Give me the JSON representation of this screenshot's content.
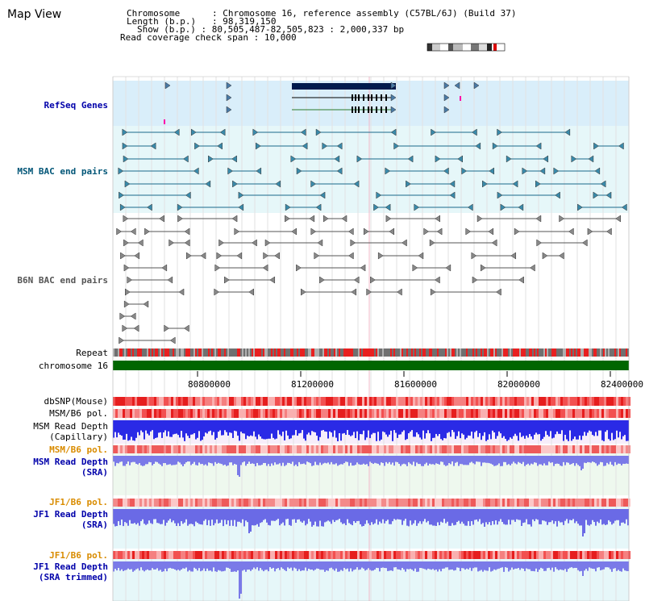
{
  "title": "Map View",
  "info": {
    "chromosome_label": "Chromosome",
    "chromosome_value": "Chromosome 16, reference assembly (C57BL/6J) (Build 37)",
    "length_label": "Length (b.p.)",
    "length_value": "98,319,150",
    "show_label": "Show (b.p.)",
    "show_value": "80,505,487-82,505,823 : 2,000,337 bp",
    "coverage_label": "Read coverage check span",
    "coverage_value": "10,000"
  },
  "tracks": {
    "refseq": "RefSeq Genes",
    "msm_bac": "MSM BAC end pairs",
    "b6n_bac": "B6N BAC end pairs",
    "repeat": "Repeat",
    "chromosome": "chromosome 16",
    "dbsnp": "dbSNP(Mouse)",
    "msm_b6_pol_1": "MSM/B6 pol.",
    "msm_read_depth_cap_1": "MSM Read Depth",
    "msm_read_depth_cap_2": "(Capillary)",
    "msm_b6_pol_2": "MSM/B6 pol.",
    "msm_read_depth_sra_1": "MSM Read Depth",
    "msm_read_depth_sra_2": "(SRA)",
    "jf1_b6_pol_1": "JF1/B6 pol.",
    "jf1_read_depth_sra_1": "JF1 Read Depth",
    "jf1_read_depth_sra_2": "(SRA)",
    "jf1_b6_pol_2": "JF1/B6 pol.",
    "jf1_read_depth_trim_1": "JF1 Read Depth",
    "jf1_read_depth_trim_2": "(SRA trimmed)"
  },
  "axis_ticks": [
    "80800000",
    "81200000",
    "81600000",
    "82000000",
    "82400000"
  ],
  "colors": {
    "refseq_bg": "#d9eefa",
    "msm_bg": "#e6f7f9",
    "pol_red": "#ee3030",
    "depth_blue": "#3a3ae0",
    "chrom_green": "#006600"
  }
}
